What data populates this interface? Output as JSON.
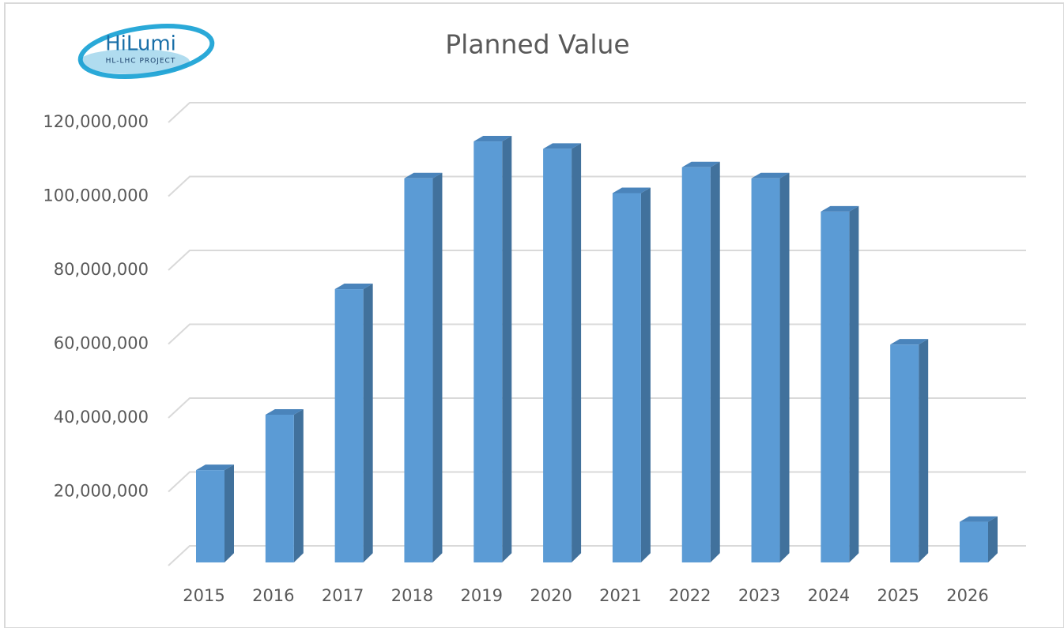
{
  "logo": {
    "name": "HiLumi",
    "subtitle": "HL-LHC PROJECT"
  },
  "chart_data": {
    "type": "bar3d",
    "title": "Planned Value",
    "categories": [
      "2015",
      "2016",
      "2017",
      "2018",
      "2019",
      "2020",
      "2021",
      "2022",
      "2023",
      "2024",
      "2025",
      "2026"
    ],
    "values": [
      25000000,
      40000000,
      74000000,
      104000000,
      114000000,
      112000000,
      100000000,
      107000000,
      104000000,
      95000000,
      59000000,
      11000000
    ],
    "color": "#5b9bd5",
    "ylim": [
      0,
      120000000
    ],
    "yticks": [
      {
        "value": 20000000,
        "label": "20,000,000"
      },
      {
        "value": 40000000,
        "label": "40,000,000"
      },
      {
        "value": 60000000,
        "label": "60,000,000"
      },
      {
        "value": 80000000,
        "label": "80,000,000"
      },
      {
        "value": 100000000,
        "label": "100,000,000"
      },
      {
        "value": 120000000,
        "label": "120,000,000"
      }
    ],
    "grid": true
  }
}
